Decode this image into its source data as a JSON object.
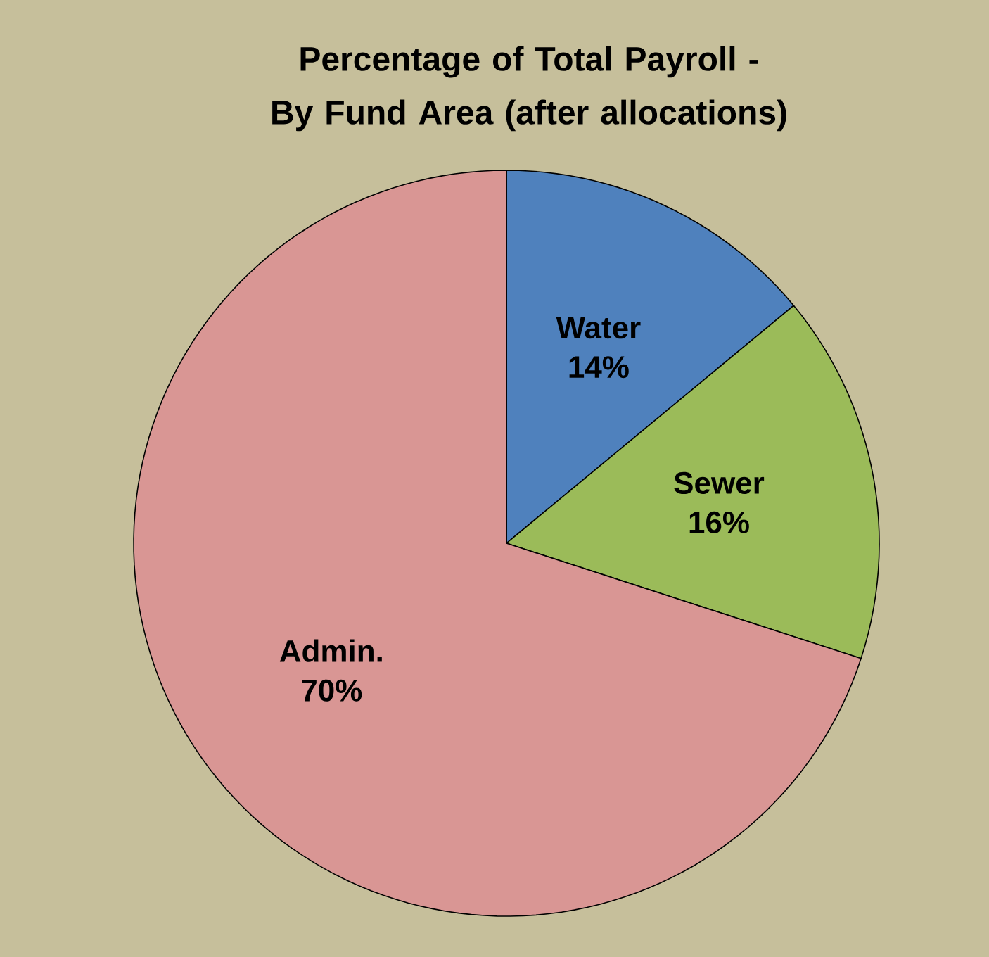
{
  "chart_data": {
    "type": "pie",
    "title": "Percentage of Total Payroll -\nBy Fund Area (after allocations)",
    "categories": [
      "Water",
      "Sewer",
      "Admin."
    ],
    "values": [
      14,
      16,
      70
    ],
    "value_labels": [
      "14%",
      "16%",
      "70%"
    ],
    "colors": [
      "#4f81bd",
      "#9bbb59",
      "#d99694"
    ]
  }
}
